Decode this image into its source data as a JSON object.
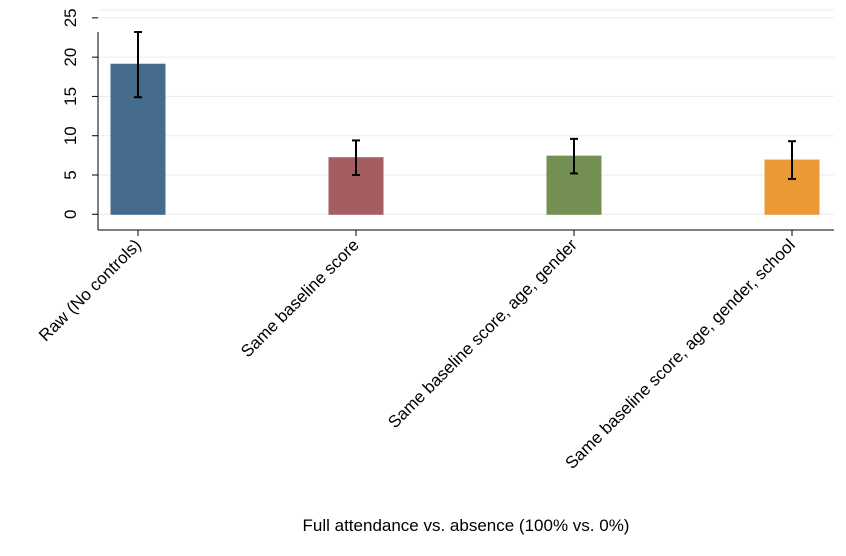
{
  "chart_data": {
    "type": "bar",
    "title": "",
    "xlabel": "Full attendance vs. absence (100% vs. 0%)",
    "ylabel": "",
    "ylim": [
      -2,
      26
    ],
    "yticks": [
      0,
      5,
      10,
      15,
      20,
      25
    ],
    "grid": true,
    "categories": [
      "Raw (No controls)",
      "Same baseline score",
      "Same baseline score, age, gender",
      "Same baseline score, age, gender, school"
    ],
    "values": [
      19.1,
      7.2,
      7.4,
      6.9
    ],
    "error_low": [
      14.9,
      5.0,
      5.2,
      4.5
    ],
    "error_high": [
      23.2,
      9.4,
      9.6,
      9.3
    ],
    "colors": [
      "#456b8d",
      "#a65d62",
      "#739052",
      "#ea9a35"
    ]
  }
}
